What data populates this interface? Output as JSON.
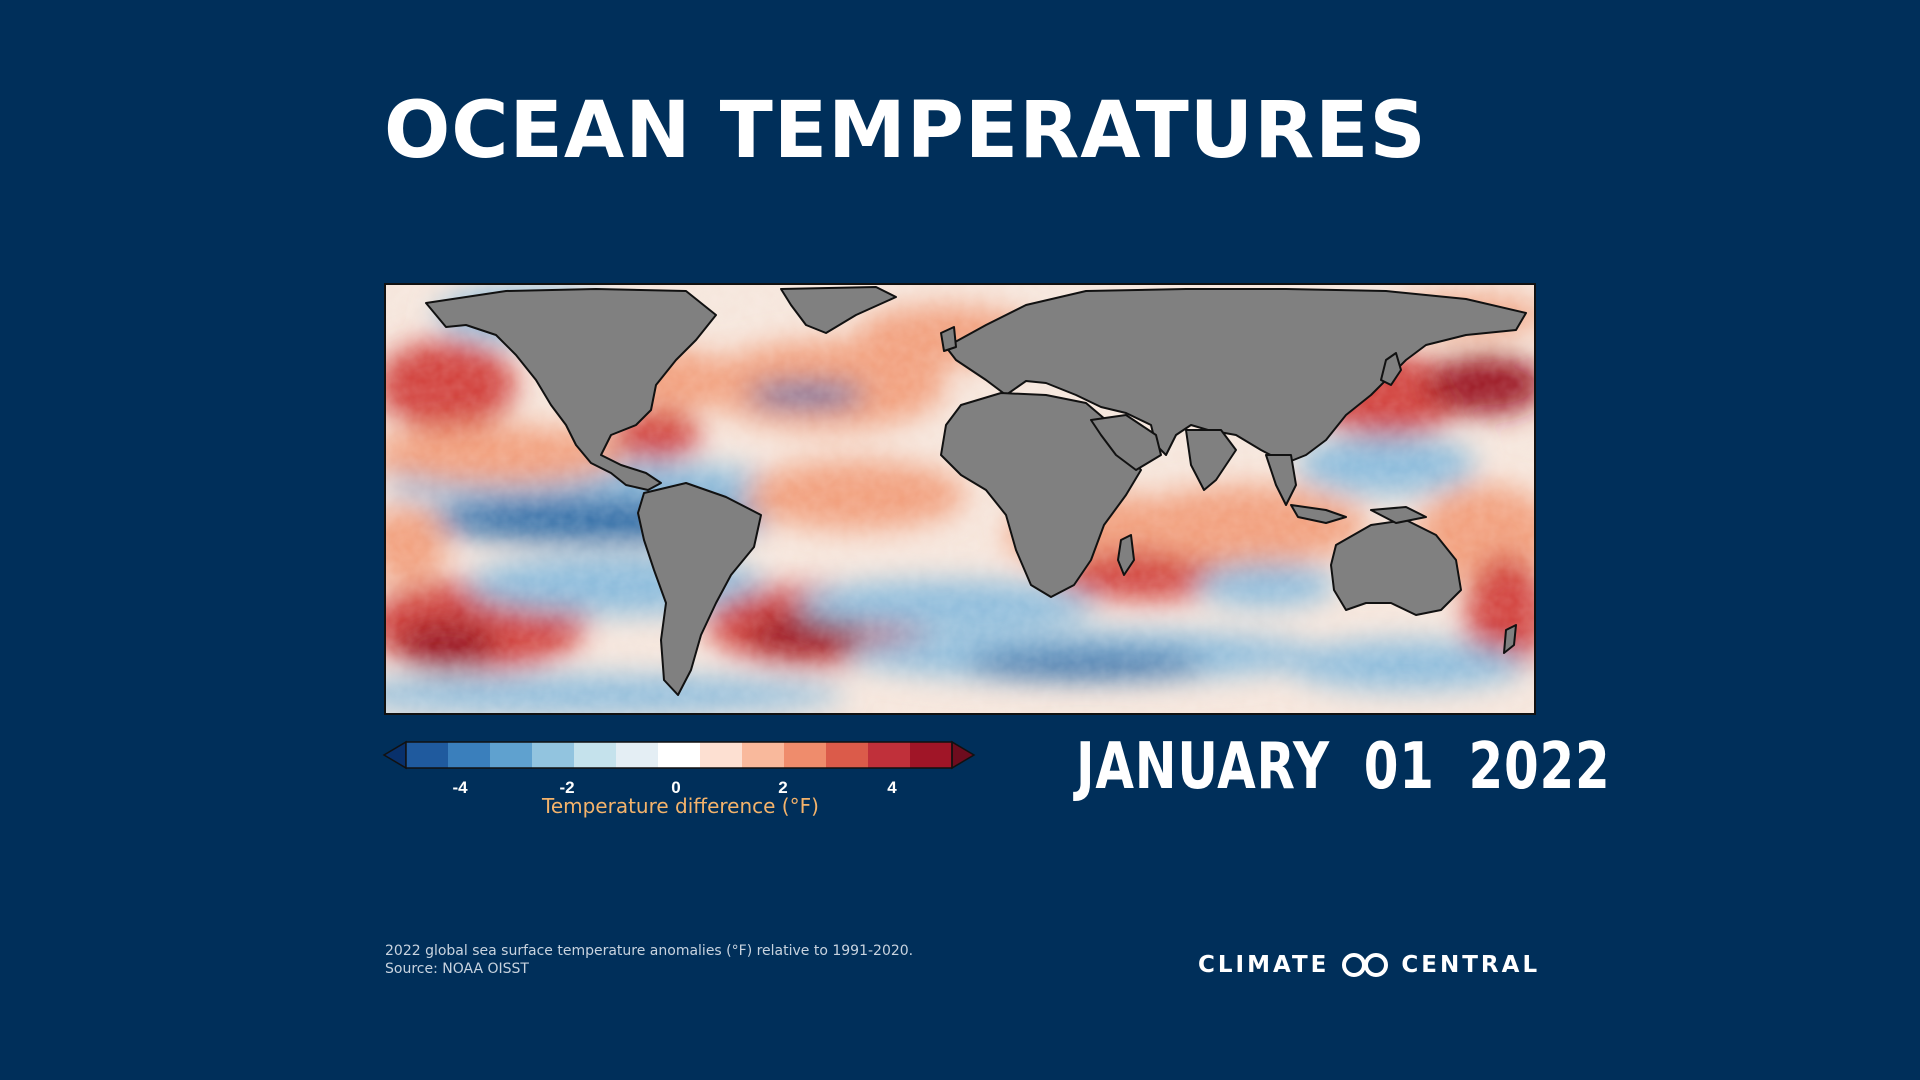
{
  "title": "OCEAN TEMPERATURES",
  "date": "JANUARY 01 2022",
  "colorbar": {
    "label": "Temperature difference (°F)",
    "ticks": [
      "-4",
      "-2",
      "0",
      "2",
      "4"
    ],
    "colors": [
      "#08306b",
      "#1f5a9e",
      "#3a7fbc",
      "#5fa1cf",
      "#92c4df",
      "#c5e2ec",
      "#e4eef4",
      "#ffffff",
      "#fde0d2",
      "#f9b99c",
      "#ef8c6c",
      "#db5b4a",
      "#c0303a",
      "#a01527",
      "#6e0c1e"
    ]
  },
  "map": {
    "land_color": "#808080",
    "anomaly_colors": {
      "deep_blue": "#2c6aa6",
      "blue": "#8cbcdc",
      "light": "#f6e6dc",
      "orange": "#f2a07e",
      "red": "#d2423c",
      "dark_red": "#9b1224"
    }
  },
  "footnote": {
    "line1": "2022 global sea surface temperature anomalies (°F) relative to 1991-2020.",
    "line2": "Source: NOAA OISST"
  },
  "brand": {
    "left": "CLIMATE",
    "right": "CENTRAL"
  }
}
